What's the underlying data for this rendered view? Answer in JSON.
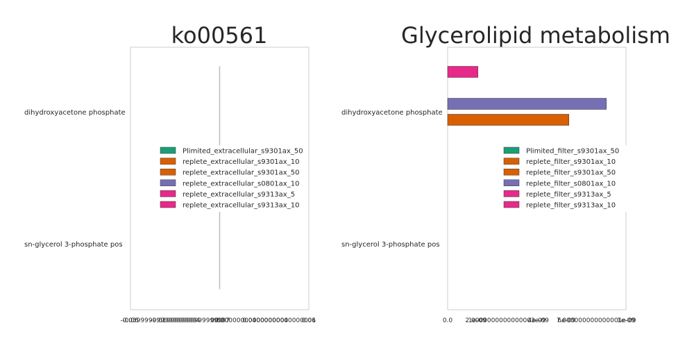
{
  "chart_data": [
    {
      "type": "bar",
      "orientation": "horizontal",
      "title": "ko00561",
      "categories": [
        "dihydroxyacetone phosphate",
        "sn-glycerol 3-phosphate pos"
      ],
      "xlim": [
        -0.06,
        0.06
      ],
      "xtick_labels": [
        "-0.06",
        "-0.039999999999999994",
        "-0.019999999999999997",
        "0.0",
        "0.020000000000000004",
        "0.04000000000000001",
        "0.06"
      ],
      "series": [
        {
          "name": "Plimited_extracellular_s9301ax_50",
          "color": "#1b9e77",
          "values": [
            0,
            0
          ]
        },
        {
          "name": "replete_extracellular_s9301ax_10",
          "color": "#d95f02",
          "values": [
            0,
            0
          ]
        },
        {
          "name": "replete_extracellular_s9301ax_50",
          "color": "#d95f02",
          "values": [
            0,
            0
          ]
        },
        {
          "name": "replete_extracellular_s0801ax_10",
          "color": "#7570b3",
          "values": [
            0,
            0
          ]
        },
        {
          "name": "replete_extracellular_s9313ax_5",
          "color": "#e7298a",
          "values": [
            0,
            0
          ]
        },
        {
          "name": "replete_extracellular_s9313ax_10",
          "color": "#e7298a",
          "values": [
            0,
            0
          ]
        }
      ],
      "legend": "center-right"
    },
    {
      "type": "bar",
      "orientation": "horizontal",
      "title": "Glycerolipid metabolism",
      "categories": [
        "dihydroxyacetone phosphate",
        "sn-glycerol 3-phosphate pos"
      ],
      "xlim": [
        0,
        1e-08
      ],
      "xtick_labels": [
        "0.0",
        "1e-09",
        "2.0000000000000003e-09",
        "4e-09",
        "6e-09",
        "7.000000000000001e-09",
        "1e-09"
      ],
      "series": [
        {
          "name": "Plimited_filter_s9301ax_50",
          "color": "#1b9e77",
          "values": [
            0,
            0
          ]
        },
        {
          "name": "replete_filter_s9301ax_10",
          "color": "#d95f02",
          "values": [
            0,
            0
          ]
        },
        {
          "name": "replete_filter_s9301ax_50",
          "color": "#d95f02",
          "values": [
            6.8e-09,
            0
          ]
        },
        {
          "name": "replete_filter_s0801ax_10",
          "color": "#7570b3",
          "values": [
            8.9e-09,
            0
          ]
        },
        {
          "name": "replete_filter_s9313ax_5",
          "color": "#e7298a",
          "values": [
            0,
            0
          ]
        },
        {
          "name": "replete_filter_s9313ax_10",
          "color": "#e7298a",
          "values": [
            1.7e-09,
            0
          ]
        }
      ],
      "legend": "center-right"
    }
  ]
}
